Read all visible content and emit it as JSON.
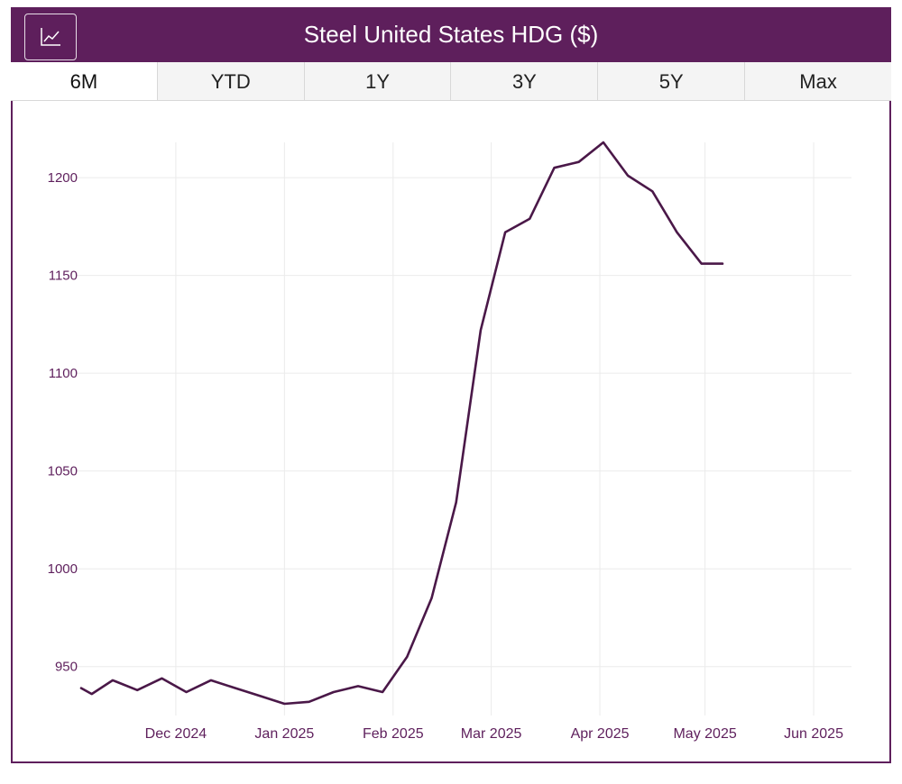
{
  "header": {
    "title": "Steel United States HDG ($)",
    "icon": "line-chart-icon",
    "color": "#5e1f5c"
  },
  "tabs": [
    {
      "label": "6M",
      "active": true
    },
    {
      "label": "YTD",
      "active": false
    },
    {
      "label": "1Y",
      "active": false
    },
    {
      "label": "3Y",
      "active": false
    },
    {
      "label": "5Y",
      "active": false
    },
    {
      "label": "Max",
      "active": false
    }
  ],
  "chart_data": {
    "type": "line",
    "title": "Steel United States HDG ($)",
    "line_color": "#4a1848",
    "tick_color": "#5e1f5c",
    "grid": true,
    "ylim": [
      925,
      1218
    ],
    "xlim": [
      "2024-11-04",
      "2025-06-19"
    ],
    "y_ticks": [
      950,
      1000,
      1050,
      1100,
      1150,
      1200
    ],
    "x_ticks": [
      {
        "date": "2024-12-01",
        "label": "Dec 2024"
      },
      {
        "date": "2025-01-01",
        "label": "Jan 2025"
      },
      {
        "date": "2025-02-01",
        "label": "Feb 2025"
      },
      {
        "date": "2025-03-01",
        "label": "Mar 2025"
      },
      {
        "date": "2025-04-01",
        "label": "Apr 2025"
      },
      {
        "date": "2025-05-01",
        "label": "May 2025"
      },
      {
        "date": "2025-06-01",
        "label": "Jun 2025"
      }
    ],
    "series": [
      {
        "x": [
          "2024-11-04",
          "2024-11-07",
          "2024-11-13",
          "2024-11-20",
          "2024-11-27",
          "2024-12-04",
          "2024-12-11",
          "2024-12-18",
          "2024-12-25",
          "2025-01-01",
          "2025-01-08",
          "2025-01-15",
          "2025-01-22",
          "2025-01-29",
          "2025-02-05",
          "2025-02-12",
          "2025-02-19",
          "2025-02-26",
          "2025-03-05",
          "2025-03-12",
          "2025-03-19",
          "2025-03-26",
          "2025-04-02",
          "2025-04-09",
          "2025-04-16",
          "2025-04-23",
          "2025-04-30",
          "2025-05-06"
        ],
        "y": [
          939,
          936,
          943,
          938,
          944,
          937,
          943,
          939,
          935,
          931,
          932,
          937,
          940,
          937,
          955,
          985,
          1034,
          1122,
          1172,
          1179,
          1205,
          1208,
          1218,
          1201,
          1193,
          1172,
          1156,
          1156
        ]
      }
    ]
  }
}
